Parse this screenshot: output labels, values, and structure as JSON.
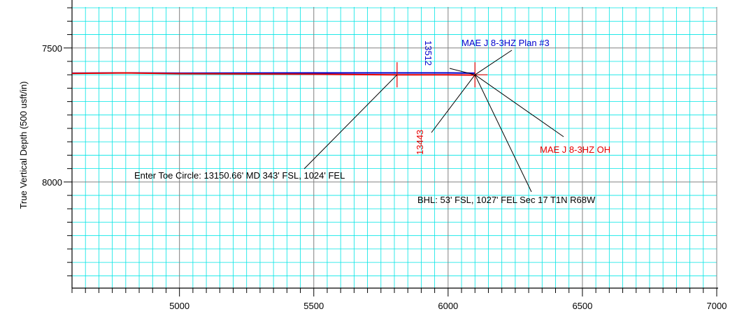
{
  "colors": {
    "background": "#ffffff",
    "minor_grid": "#00e5e5",
    "major_grid": "#808080",
    "plan": "#0000cc",
    "actual": "#e60000",
    "text": "#000000",
    "axis": "#000000"
  },
  "chart_data": {
    "type": "line",
    "ylabel": "True Vertical Depth (500 usft/in)",
    "xlim": [
      4600,
      7000
    ],
    "ylim": [
      7500,
      8300
    ],
    "y_inverted": true,
    "grid": true,
    "major_step": 500,
    "minor_step": 50,
    "xticks": [
      5000,
      5500,
      6000,
      6500,
      7000
    ],
    "xtick_labels": [
      "5000",
      "5500",
      "6000",
      "6500",
      "7000"
    ],
    "yticks": [
      7500,
      8000
    ],
    "ytick_labels": [
      "7500",
      "8000"
    ],
    "series": [
      {
        "name": "MAE J 8-3HZ Plan #3",
        "color": "#0000cc",
        "x": [
          4600,
          4800,
          5000,
          5500,
          5800,
          6000,
          6100
        ],
        "y": [
          7594,
          7593,
          7594,
          7593,
          7593,
          7593,
          7594
        ]
      },
      {
        "name": "MAE J 8-3HZ OH",
        "color": "#e60000",
        "x": [
          4600,
          4800,
          5000,
          5500,
          5800,
          6000,
          6100
        ],
        "y": [
          7595,
          7593,
          7596,
          7598,
          7600,
          7600,
          7601
        ]
      }
    ],
    "markers": [
      {
        "x": 5810,
        "y": 7600,
        "color": "#e60000",
        "kind": "vertical"
      },
      {
        "x": 6100,
        "y": 7600,
        "color": "#e60000",
        "kind": "cross"
      }
    ],
    "annotations": {
      "plan_label": "MAE J 8-3HZ Plan #3",
      "plan_md": "13512",
      "actual_label": "MAE J 8-3HZ OH",
      "actual_md": "13443",
      "toe_circle": "Enter Toe Circle: 13150.66' MD 343' FSL, 1024' FEL",
      "bhl": "BHL: 53' FSL, 1027' FEL Sec 17 T1N R68W"
    }
  }
}
